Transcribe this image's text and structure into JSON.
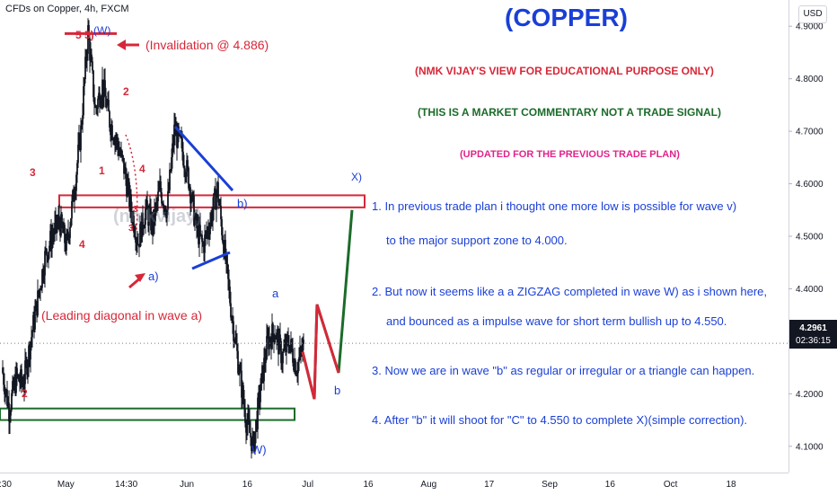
{
  "header": {
    "symbol_title": "CFDs on Copper, 4h, FXCM",
    "currency_button": "USD"
  },
  "commentary": {
    "headline": "(COPPER)",
    "line1": "(NMK VIJAY'S VIEW FOR EDUCATIONAL PURPOSE ONLY)",
    "line2": "(THIS IS A MARKET COMMENTARY NOT A TRADE SIGNAL)",
    "line3": "(UPDATED FOR THE PREVIOUS TRADE PLAN)",
    "points": [
      "1. In previous trade plan i thought one more low is possible for wave v)",
      "to the major support zone  to 4.000.",
      "2. But now it seems like a a ZIGZAG completed in wave W) as i shown here,",
      "and bounced as a impulse wave for short term bullish up to 4.550.",
      "3. Now we are in wave \"b\" as regular or irregular or a triangle can happen.",
      "4. After \"b\" it will shoot for \"C\" to 4.550 to complete X)(simple correction)."
    ],
    "colors": {
      "headline": "#1a3fd6",
      "line1": "#d62839",
      "line2": "#1b6b2a",
      "line3": "#e0248a",
      "points": "#1a3fd6"
    }
  },
  "annotations": {
    "invalidation": "(Invalidation @ 4.886)",
    "leading_diagonal": "(Leading diagonal in wave a)",
    "watermark": "(nmkvijay)",
    "wave_labels": [
      "5",
      "5)",
      "(W)",
      "2",
      "1",
      "4",
      "3",
      "3",
      "4",
      "3",
      "a)",
      "b)",
      "X)",
      "a",
      "b",
      "W)",
      "2"
    ],
    "colors": {
      "red": "#d62839",
      "blue": "#1a3fd6",
      "green": "#1b6b2a"
    }
  },
  "price_axis": {
    "ticks": [
      "4.9000",
      "4.8000",
      "4.7000",
      "4.6000",
      "4.5000",
      "4.4000",
      "4.3000",
      "4.2000",
      "4.1000"
    ],
    "last_price": "4.2961",
    "countdown": "02:36:15"
  },
  "time_axis": {
    "ticks": [
      ":30",
      "May",
      "14:30",
      "Jun",
      "16",
      "Jul",
      "16",
      "Aug",
      "17",
      "Sep",
      "16",
      "Oct",
      "18"
    ]
  },
  "chart_data": {
    "type": "candlestick",
    "title": "CFDs on Copper, 4h, FXCM",
    "ylim": [
      4.05,
      4.95
    ],
    "price_levels": {
      "invalidation": 4.886,
      "resistance_zone": [
        4.555,
        4.578
      ],
      "support_zone": [
        4.15,
        4.172
      ],
      "last_price": 4.2961
    },
    "path_y": [
      4.25,
      4.17,
      4.23,
      4.22,
      4.3,
      4.38,
      4.46,
      4.5,
      4.53,
      4.48,
      4.58,
      4.7,
      4.89,
      4.74,
      4.79,
      4.72,
      4.68,
      4.63,
      4.55,
      4.49,
      4.55,
      4.52,
      4.59,
      4.55,
      4.7,
      4.67,
      4.61,
      4.52,
      4.48,
      4.53,
      4.59,
      4.47,
      4.35,
      4.25,
      4.15,
      4.1,
      4.21,
      4.3,
      4.32,
      4.27,
      4.3,
      4.25,
      4.29
    ],
    "projection": {
      "green": [
        4.28,
        4.19,
        4.37,
        4.24,
        4.55
      ],
      "red": [
        4.28,
        4.19,
        4.37,
        4.24
      ]
    }
  }
}
